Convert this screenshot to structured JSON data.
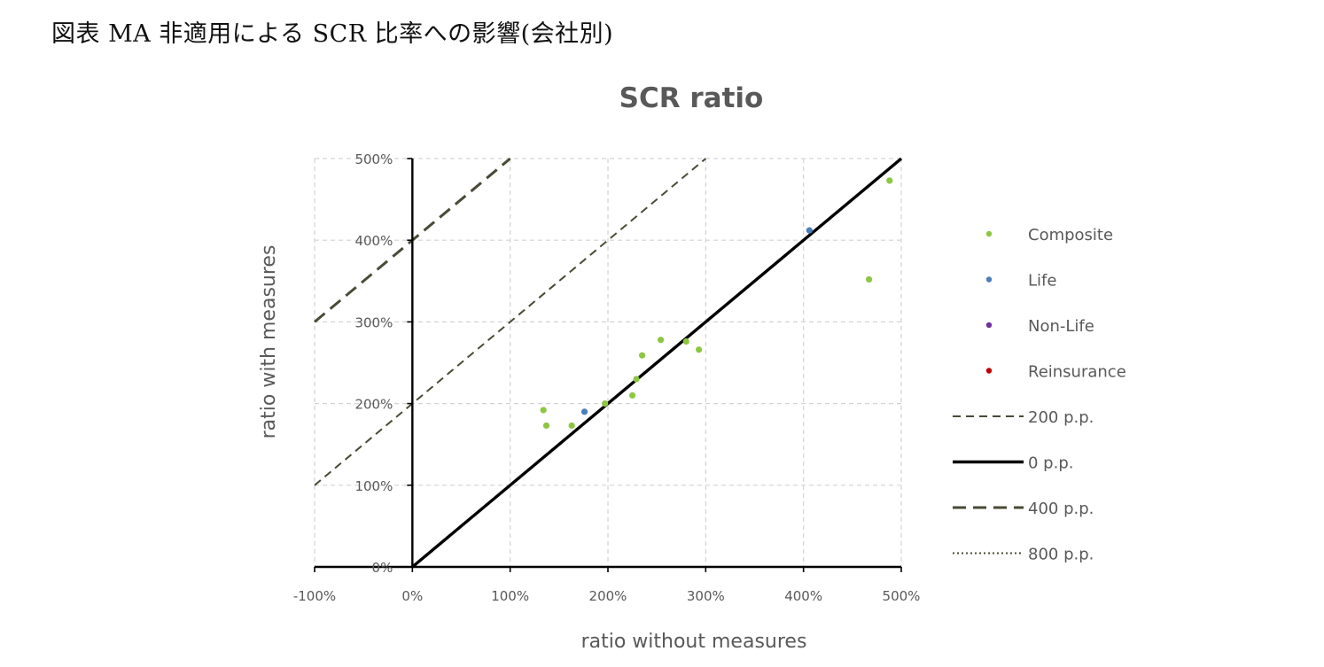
{
  "figure_caption": "図表 MA 非適用による SCR 比率への影響(会社別)",
  "chart_data": {
    "type": "scatter",
    "title": "SCR ratio",
    "xlabel": "ratio without measures",
    "ylabel": "ratio with measures",
    "xlim": [
      -100,
      500
    ],
    "ylim": [
      0,
      500
    ],
    "x_ticks": [
      "-100%",
      "0%",
      "100%",
      "200%",
      "300%",
      "400%",
      "500%"
    ],
    "y_ticks": [
      "0%",
      "100%",
      "200%",
      "300%",
      "400%",
      "500%"
    ],
    "grid": true,
    "legend_position": "right",
    "series": [
      {
        "name": "Composite",
        "color": "#8DC641",
        "points": [
          [
            134,
            192
          ],
          [
            137,
            173
          ],
          [
            163,
            173
          ],
          [
            197,
            200
          ],
          [
            225,
            210
          ],
          [
            229,
            230
          ],
          [
            235,
            259
          ],
          [
            254,
            278
          ],
          [
            280,
            276
          ],
          [
            293,
            266
          ],
          [
            467,
            352
          ],
          [
            488,
            473
          ]
        ]
      },
      {
        "name": "Life",
        "color": "#4A7EBB",
        "points": [
          [
            176,
            190
          ],
          [
            406,
            412
          ]
        ]
      },
      {
        "name": "Non-Life",
        "color": "#7030A0",
        "points": []
      },
      {
        "name": "Reinsurance",
        "color": "#C00000",
        "points": []
      }
    ],
    "reference_lines": [
      {
        "name": "200 p.p.",
        "offset": 200,
        "style": "dashed",
        "color": "#4A4A35"
      },
      {
        "name": "0 p.p.",
        "offset": 0,
        "style": "solid",
        "color": "#000000"
      },
      {
        "name": "400 p.p.",
        "offset": 400,
        "style": "dashed-heavy",
        "color": "#4A4A35"
      },
      {
        "name": "800 p.p.",
        "offset": 800,
        "style": "dotted",
        "color": "#4A4A35"
      }
    ]
  }
}
